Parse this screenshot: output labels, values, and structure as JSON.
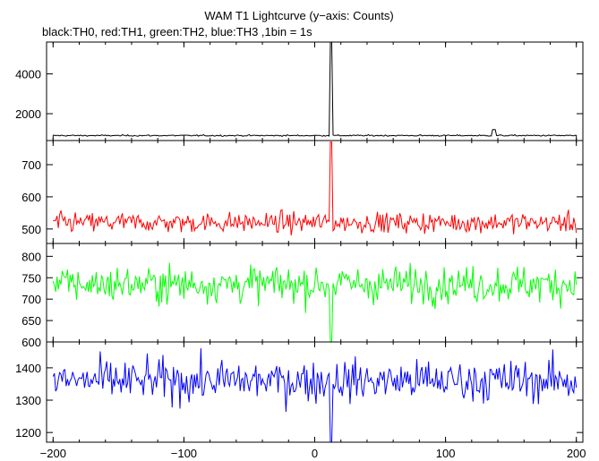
{
  "chart_data": {
    "type": "line",
    "title": "WAM T1 Lightcurve (y−axis: Counts)",
    "subtitle": "black:TH0, red:TH1, green:TH2, blue:TH3 ,1bin = 1s",
    "xlabel": "",
    "xlim": [
      -205,
      205
    ],
    "x_ticks": [
      -200,
      -100,
      0,
      100,
      200
    ],
    "x_tick_labels": [
      "−200",
      "−100",
      "0",
      "100",
      "200"
    ],
    "grid": false,
    "panels": [
      {
        "series": "TH0",
        "color": "#000000",
        "ylim": [
          650,
          5600
        ],
        "y_ticks": [
          2000,
          4000
        ],
        "y_tick_labels": [
          "2000",
          "4000"
        ],
        "baseline": 900,
        "noise": 25,
        "features": [
          {
            "x": 12.5,
            "y": 5600,
            "kind": "spike"
          },
          {
            "x": 137,
            "y": 1200,
            "kind": "bump"
          }
        ]
      },
      {
        "series": "TH1",
        "color": "#ff0000",
        "ylim": [
          455,
          775
        ],
        "y_ticks": [
          500,
          600,
          700
        ],
        "y_tick_labels": [
          "500",
          "600",
          "700"
        ],
        "baseline": 520,
        "noise": 22,
        "features": [
          {
            "x": 12.5,
            "y": 770,
            "kind": "spike"
          }
        ]
      },
      {
        "series": "TH2",
        "color": "#00ff00",
        "ylim": [
          600,
          830
        ],
        "y_ticks": [
          600,
          650,
          700,
          750,
          800
        ],
        "y_tick_labels": [
          "600",
          "650",
          "700",
          "750",
          "800"
        ],
        "baseline": 735,
        "noise": 30,
        "features": [
          {
            "x": 12.5,
            "y": 600,
            "kind": "dip"
          }
        ]
      },
      {
        "series": "TH3",
        "color": "#0000ff",
        "ylim": [
          1170,
          1480
        ],
        "y_ticks": [
          1200,
          1300,
          1400
        ],
        "y_tick_labels": [
          "1200",
          "1300",
          "1400"
        ],
        "baseline": 1360,
        "noise": 45,
        "features": [
          {
            "x": 12.5,
            "y": 1170,
            "kind": "dip"
          }
        ]
      }
    ]
  }
}
